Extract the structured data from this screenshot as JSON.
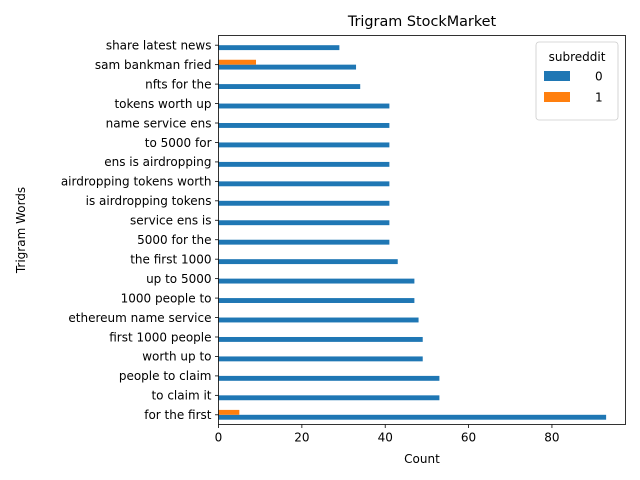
{
  "chart_data": {
    "type": "bar",
    "orientation": "horizontal",
    "title": "Trigram StockMarket",
    "xlabel": "Count",
    "ylabel": "Trigram Words",
    "xlim": [
      0,
      97.65
    ],
    "xticks": [
      0,
      20,
      40,
      60,
      80
    ],
    "categories": [
      "for the first",
      "to claim it",
      "people to claim",
      "worth up to",
      "first 1000 people",
      "ethereum name service",
      "1000 people to",
      "up to 5000",
      "the first 1000",
      "5000 for the",
      "service ens is",
      "is airdropping tokens",
      "airdropping tokens worth",
      "ens is airdropping",
      "to 5000 for",
      "name service ens",
      "tokens worth up",
      "nfts for the",
      "sam bankman fried",
      "share latest news"
    ],
    "series": [
      {
        "name": "0",
        "color": "#1f77b4",
        "values": [
          93,
          53,
          53,
          49,
          49,
          48,
          47,
          47,
          43,
          41,
          41,
          41,
          41,
          41,
          41,
          41,
          41,
          34,
          33,
          29
        ]
      },
      {
        "name": "1",
        "color": "#ff7f0e",
        "values": [
          5,
          0,
          0,
          0,
          0,
          0,
          0,
          0,
          0,
          0,
          0,
          0,
          0,
          0,
          0,
          0,
          0,
          0,
          9,
          0
        ]
      }
    ],
    "legend": {
      "title": "subreddit",
      "position": "upper right"
    },
    "grid": false
  }
}
